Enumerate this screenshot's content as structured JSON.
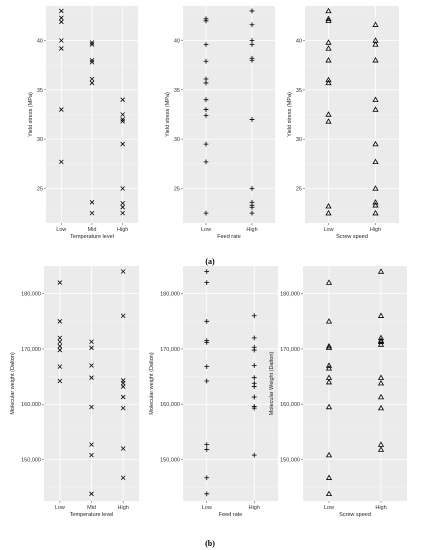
{
  "figure_labels": {
    "a": "(a)",
    "b": "(b)"
  },
  "chart_data": [
    {
      "id": "a1",
      "type": "scatter",
      "marker": "x",
      "xlabel": "Temperature level",
      "ylabel": "Yield stress (MPa)",
      "categories": [
        "Low",
        "Mid",
        "High"
      ],
      "ylim": [
        21.5,
        43.5
      ],
      "yticks": [
        25,
        30,
        35,
        40
      ],
      "grid": true,
      "series": [
        {
          "values": [
            43,
            42.3,
            41.9,
            40,
            39.2,
            33,
            27.7
          ]
        },
        {
          "values": [
            39.8,
            39.6,
            38,
            37.8,
            36.1,
            35.7,
            23.6,
            22.5
          ]
        },
        {
          "values": [
            34,
            32.5,
            32,
            31.8,
            29.5,
            25,
            23.5,
            23.1,
            22.5
          ]
        }
      ]
    },
    {
      "id": "a2",
      "type": "scatter",
      "marker": "+",
      "xlabel": "Feed rate",
      "ylabel": "Yield stress (MPa)",
      "categories": [
        "Low",
        "High"
      ],
      "ylim": [
        21.5,
        43.5
      ],
      "yticks": [
        25,
        30,
        35,
        40
      ],
      "grid": true,
      "series": [
        {
          "values": [
            42.2,
            42,
            39.6,
            37.9,
            36.1,
            35.7,
            34,
            33,
            32.4,
            29.5,
            27.7,
            22.5
          ]
        },
        {
          "values": [
            43,
            41.6,
            40,
            39.6,
            38.2,
            38,
            32,
            25,
            23.6,
            23.3,
            23.1,
            22.5
          ]
        }
      ]
    },
    {
      "id": "a3",
      "type": "scatter",
      "marker": "triangle",
      "xlabel": "Screw speed",
      "ylabel": "Yield stress (MPa)",
      "categories": [
        "Low",
        "High"
      ],
      "ylim": [
        21.5,
        43.5
      ],
      "yticks": [
        25,
        30,
        35,
        40
      ],
      "grid": true,
      "series": [
        {
          "values": [
            43,
            42.2,
            42,
            39.8,
            39.2,
            38,
            36,
            35.7,
            32.5,
            31.8,
            23.2,
            22.5
          ]
        },
        {
          "values": [
            41.6,
            40,
            39.6,
            38,
            34,
            33,
            29.5,
            27.7,
            25,
            23.6,
            23.3,
            22.5
          ]
        }
      ]
    },
    {
      "id": "b1",
      "type": "scatter",
      "marker": "x",
      "xlabel": "Temperature level",
      "ylabel": "Molecular weight (Dalton)",
      "categories": [
        "Low",
        "Mid",
        "High"
      ],
      "ylim": [
        142500,
        185000
      ],
      "yticks": [
        150000,
        160000,
        170000,
        180000
      ],
      "yticklabels": [
        "150,000",
        "160,000",
        "170,000",
        "180,000"
      ],
      "grid": true,
      "series": [
        {
          "values": [
            182000,
            175000,
            172000,
            171300,
            170500,
            169800,
            166800,
            164200
          ]
        },
        {
          "values": [
            171300,
            170200,
            167000,
            164800,
            159500,
            152700,
            150800,
            143800
          ]
        },
        {
          "values": [
            184000,
            176000,
            164300,
            163800,
            163200,
            161300,
            159300,
            152000,
            146700
          ]
        }
      ]
    },
    {
      "id": "b2",
      "type": "scatter",
      "marker": "+",
      "xlabel": "Feed rate",
      "ylabel": "Molecular weight (Dalton)",
      "categories": [
        "Low",
        "High"
      ],
      "ylim": [
        142500,
        185000
      ],
      "yticks": [
        150000,
        160000,
        170000,
        180000
      ],
      "yticklabels": [
        "150,000",
        "160,000",
        "170,000",
        "180,000"
      ],
      "grid": true,
      "series": [
        {
          "values": [
            184000,
            182000,
            175000,
            171500,
            171200,
            166800,
            164200,
            152700,
            151800,
            146700,
            143800
          ]
        },
        {
          "values": [
            176000,
            172000,
            170300,
            169800,
            167000,
            164800,
            163800,
            163200,
            161300,
            159600,
            159300,
            150800
          ]
        }
      ]
    },
    {
      "id": "b3",
      "type": "scatter",
      "marker": "triangle",
      "xlabel": "Screw speed",
      "ylabel": "Molecular Weight (Dalton)",
      "categories": [
        "Low",
        "High"
      ],
      "ylim": [
        142500,
        185000
      ],
      "yticks": [
        150000,
        160000,
        170000,
        180000
      ],
      "yticklabels": [
        "150,000",
        "160,000",
        "170,000",
        "180,000"
      ],
      "grid": true,
      "series": [
        {
          "values": [
            182000,
            175000,
            170500,
            170200,
            167000,
            166500,
            164800,
            164000,
            159500,
            150800,
            146700,
            143800
          ]
        },
        {
          "values": [
            184000,
            176000,
            172000,
            171500,
            171300,
            170800,
            164800,
            163800,
            161300,
            159300,
            152700,
            151800
          ]
        }
      ]
    }
  ]
}
